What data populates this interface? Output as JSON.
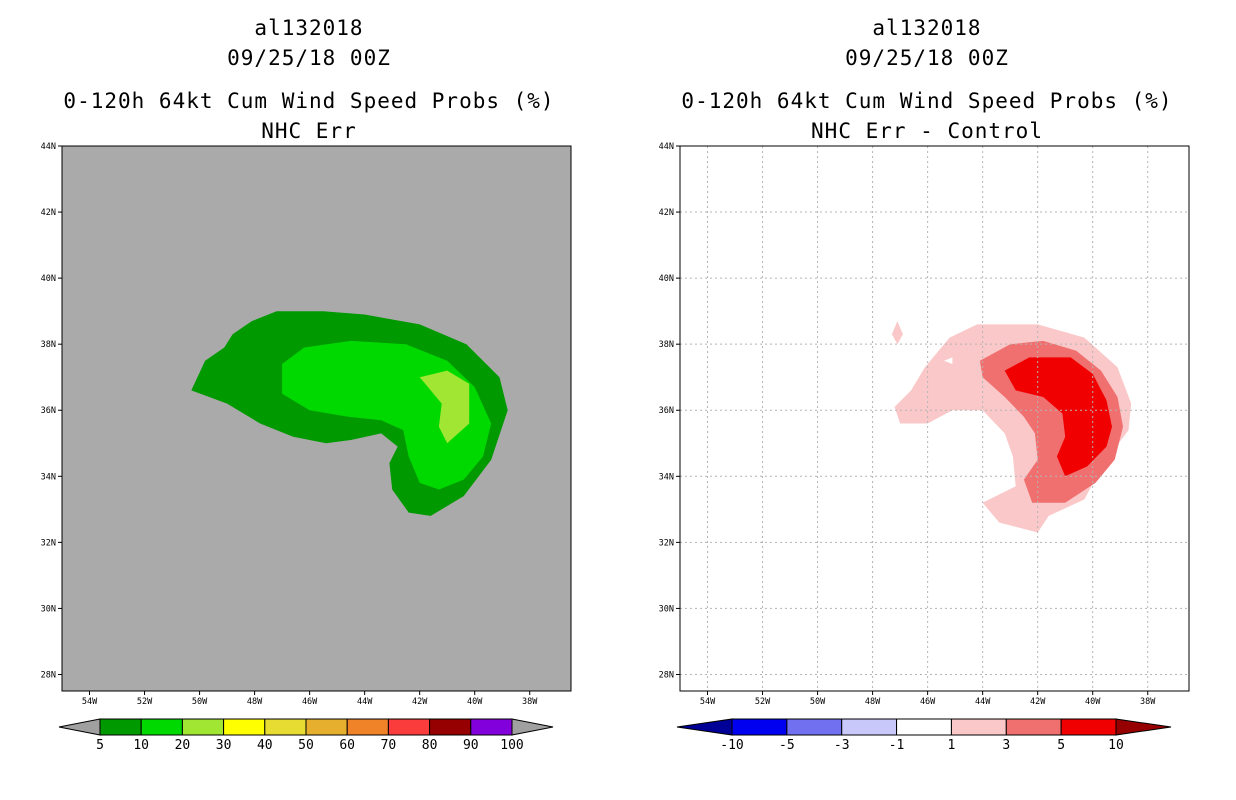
{
  "panels": [
    {
      "id": "left",
      "storm_id": "al132018",
      "datetime": "09/25/18 00Z",
      "product": "0-120h 64kt Cum Wind Speed Probs (%)",
      "subtitle": "NHC Err",
      "background": "#aaaaaa",
      "grid": false,
      "colorbar": {
        "colors": [
          "#009900",
          "#00d900",
          "#a0e632",
          "#ffff00",
          "#e6dc32",
          "#e6af2d",
          "#f08228",
          "#fa3c3c",
          "#960000",
          "#8200dc"
        ],
        "end_colors": [
          "#a0a0a0",
          "#a0a0a0"
        ],
        "labels": [
          "5",
          "10",
          "20",
          "30",
          "40",
          "50",
          "60",
          "70",
          "80",
          "90",
          "100"
        ]
      }
    },
    {
      "id": "right",
      "storm_id": "al132018",
      "datetime": "09/25/18 00Z",
      "product": "0-120h 64kt Cum Wind Speed Probs (%)",
      "subtitle": "NHC Err - Control",
      "background": "#ffffff",
      "grid": true,
      "colorbar": {
        "colors": [
          "#0000f0",
          "#7070f0",
          "#c8c8fa",
          "#ffffff",
          "#fac8c8",
          "#f07070",
          "#f00000"
        ],
        "end_colors": [
          "#000096",
          "#960000"
        ],
        "labels": [
          "-10",
          "-5",
          "-3",
          "-1",
          "1",
          "3",
          "5",
          "10"
        ]
      }
    }
  ],
  "chart_data": [
    {
      "type": "contour-map",
      "title": "al132018 09/25/18 00Z 0-120h 64kt Cum Wind Speed Probs (%) NHC Err",
      "x_ticks": [
        "54W",
        "52W",
        "50W",
        "48W",
        "46W",
        "44W",
        "42W",
        "40W",
        "38W"
      ],
      "y_ticks": [
        "44N",
        "42N",
        "40N",
        "38N",
        "36N",
        "34N",
        "32N",
        "30N",
        "28N"
      ],
      "xlim": [
        -55.0,
        -36.5
      ],
      "ylim": [
        27.5,
        44.0
      ],
      "levels": [
        5,
        10,
        20,
        30,
        40,
        50,
        60,
        70,
        80,
        90,
        100
      ],
      "contours": [
        {
          "level_index": 0,
          "polygon": [
            [
              -50.3,
              36.6
            ],
            [
              -49.8,
              37.5
            ],
            [
              -49.1,
              37.9
            ],
            [
              -48.8,
              38.3
            ],
            [
              -48.1,
              38.7
            ],
            [
              -47.2,
              39.0
            ],
            [
              -45.5,
              39.0
            ],
            [
              -44.0,
              38.9
            ],
            [
              -42.0,
              38.6
            ],
            [
              -40.3,
              38.0
            ],
            [
              -39.1,
              37.0
            ],
            [
              -38.8,
              36.0
            ],
            [
              -39.4,
              34.5
            ],
            [
              -40.4,
              33.4
            ],
            [
              -41.6,
              32.8
            ],
            [
              -42.4,
              32.9
            ],
            [
              -43.0,
              33.6
            ],
            [
              -43.1,
              34.4
            ],
            [
              -42.8,
              34.9
            ],
            [
              -43.4,
              35.3
            ],
            [
              -44.5,
              35.1
            ],
            [
              -45.4,
              35.0
            ],
            [
              -46.6,
              35.2
            ],
            [
              -47.8,
              35.6
            ],
            [
              -49.0,
              36.2
            ]
          ]
        },
        {
          "level_index": 1,
          "polygon": [
            [
              -47.0,
              37.4
            ],
            [
              -46.2,
              37.9
            ],
            [
              -44.5,
              38.1
            ],
            [
              -42.5,
              38.0
            ],
            [
              -41.0,
              37.5
            ],
            [
              -40.0,
              36.7
            ],
            [
              -39.4,
              35.6
            ],
            [
              -39.7,
              34.6
            ],
            [
              -40.4,
              33.9
            ],
            [
              -41.3,
              33.6
            ],
            [
              -42.0,
              33.8
            ],
            [
              -42.4,
              34.6
            ],
            [
              -42.6,
              35.4
            ],
            [
              -43.4,
              35.7
            ],
            [
              -44.6,
              35.8
            ],
            [
              -46.0,
              36.0
            ],
            [
              -47.0,
              36.5
            ]
          ]
        },
        {
          "level_index": 2,
          "polygon": [
            [
              -42.0,
              37.0
            ],
            [
              -41.0,
              37.2
            ],
            [
              -40.2,
              36.8
            ],
            [
              -40.2,
              35.6
            ],
            [
              -41.0,
              35.0
            ],
            [
              -41.3,
              35.5
            ],
            [
              -41.2,
              36.2
            ],
            [
              -41.6,
              36.6
            ]
          ]
        }
      ]
    },
    {
      "type": "contour-map",
      "title": "al132018 09/25/18 00Z 0-120h 64kt Cum Wind Speed Probs (%) NHC Err - Control",
      "x_ticks": [
        "54W",
        "52W",
        "50W",
        "48W",
        "46W",
        "44W",
        "42W",
        "40W",
        "38W"
      ],
      "y_ticks": [
        "44N",
        "42N",
        "40N",
        "38N",
        "36N",
        "34N",
        "32N",
        "30N",
        "28N"
      ],
      "xlim": [
        -55.0,
        -36.5
      ],
      "ylim": [
        27.5,
        44.0
      ],
      "levels": [
        -10,
        -5,
        -3,
        -1,
        1,
        3,
        5,
        10
      ],
      "contours": [
        {
          "level_index": 4,
          "polygon": [
            [
              -47.1,
              38.7
            ],
            [
              -46.9,
              38.3
            ],
            [
              -47.1,
              38.0
            ],
            [
              -47.3,
              38.3
            ]
          ]
        },
        {
          "level_index": 4,
          "polygon": [
            [
              -46.1,
              37.3
            ],
            [
              -45.2,
              38.2
            ],
            [
              -44.2,
              38.6
            ],
            [
              -42.0,
              38.6
            ],
            [
              -40.3,
              38.2
            ],
            [
              -39.1,
              37.3
            ],
            [
              -38.6,
              36.2
            ],
            [
              -38.7,
              35.4
            ],
            [
              -39.6,
              34.4
            ],
            [
              -40.3,
              33.3
            ],
            [
              -41.6,
              32.8
            ],
            [
              -42.0,
              32.3
            ],
            [
              -43.4,
              32.6
            ],
            [
              -44.0,
              33.2
            ],
            [
              -42.8,
              33.7
            ],
            [
              -42.9,
              34.6
            ],
            [
              -43.2,
              35.3
            ],
            [
              -44.0,
              36.0
            ],
            [
              -45.1,
              36.0
            ],
            [
              -46.0,
              35.6
            ],
            [
              -47.0,
              35.6
            ],
            [
              -47.2,
              36.1
            ],
            [
              -46.6,
              36.6
            ]
          ]
        },
        {
          "level_index": 5,
          "polygon": [
            [
              -44.1,
              37.5
            ],
            [
              -43.0,
              38.0
            ],
            [
              -41.8,
              38.1
            ],
            [
              -40.6,
              37.8
            ],
            [
              -39.7,
              37.2
            ],
            [
              -39.1,
              36.4
            ],
            [
              -38.9,
              35.5
            ],
            [
              -39.2,
              34.5
            ],
            [
              -39.9,
              33.8
            ],
            [
              -41.0,
              33.2
            ],
            [
              -42.2,
              33.2
            ],
            [
              -42.5,
              33.9
            ],
            [
              -42.0,
              34.5
            ],
            [
              -42.1,
              35.3
            ],
            [
              -42.5,
              35.8
            ],
            [
              -43.2,
              36.4
            ],
            [
              -44.0,
              37.0
            ]
          ]
        },
        {
          "level_index": 6,
          "polygon": [
            [
              -43.2,
              37.2
            ],
            [
              -42.3,
              37.6
            ],
            [
              -40.8,
              37.6
            ],
            [
              -40.0,
              37.1
            ],
            [
              -39.5,
              36.3
            ],
            [
              -39.3,
              35.5
            ],
            [
              -39.5,
              34.9
            ],
            [
              -40.2,
              34.3
            ],
            [
              -41.0,
              34.0
            ],
            [
              -41.3,
              34.6
            ],
            [
              -41.0,
              35.2
            ],
            [
              -41.1,
              35.9
            ],
            [
              -41.8,
              36.4
            ],
            [
              -42.8,
              36.6
            ]
          ]
        },
        {
          "level_index": 3,
          "polygon": [
            [
              -45.4,
              37.5
            ],
            [
              -45.1,
              37.6
            ],
            [
              -45.1,
              37.4
            ]
          ]
        }
      ]
    }
  ]
}
